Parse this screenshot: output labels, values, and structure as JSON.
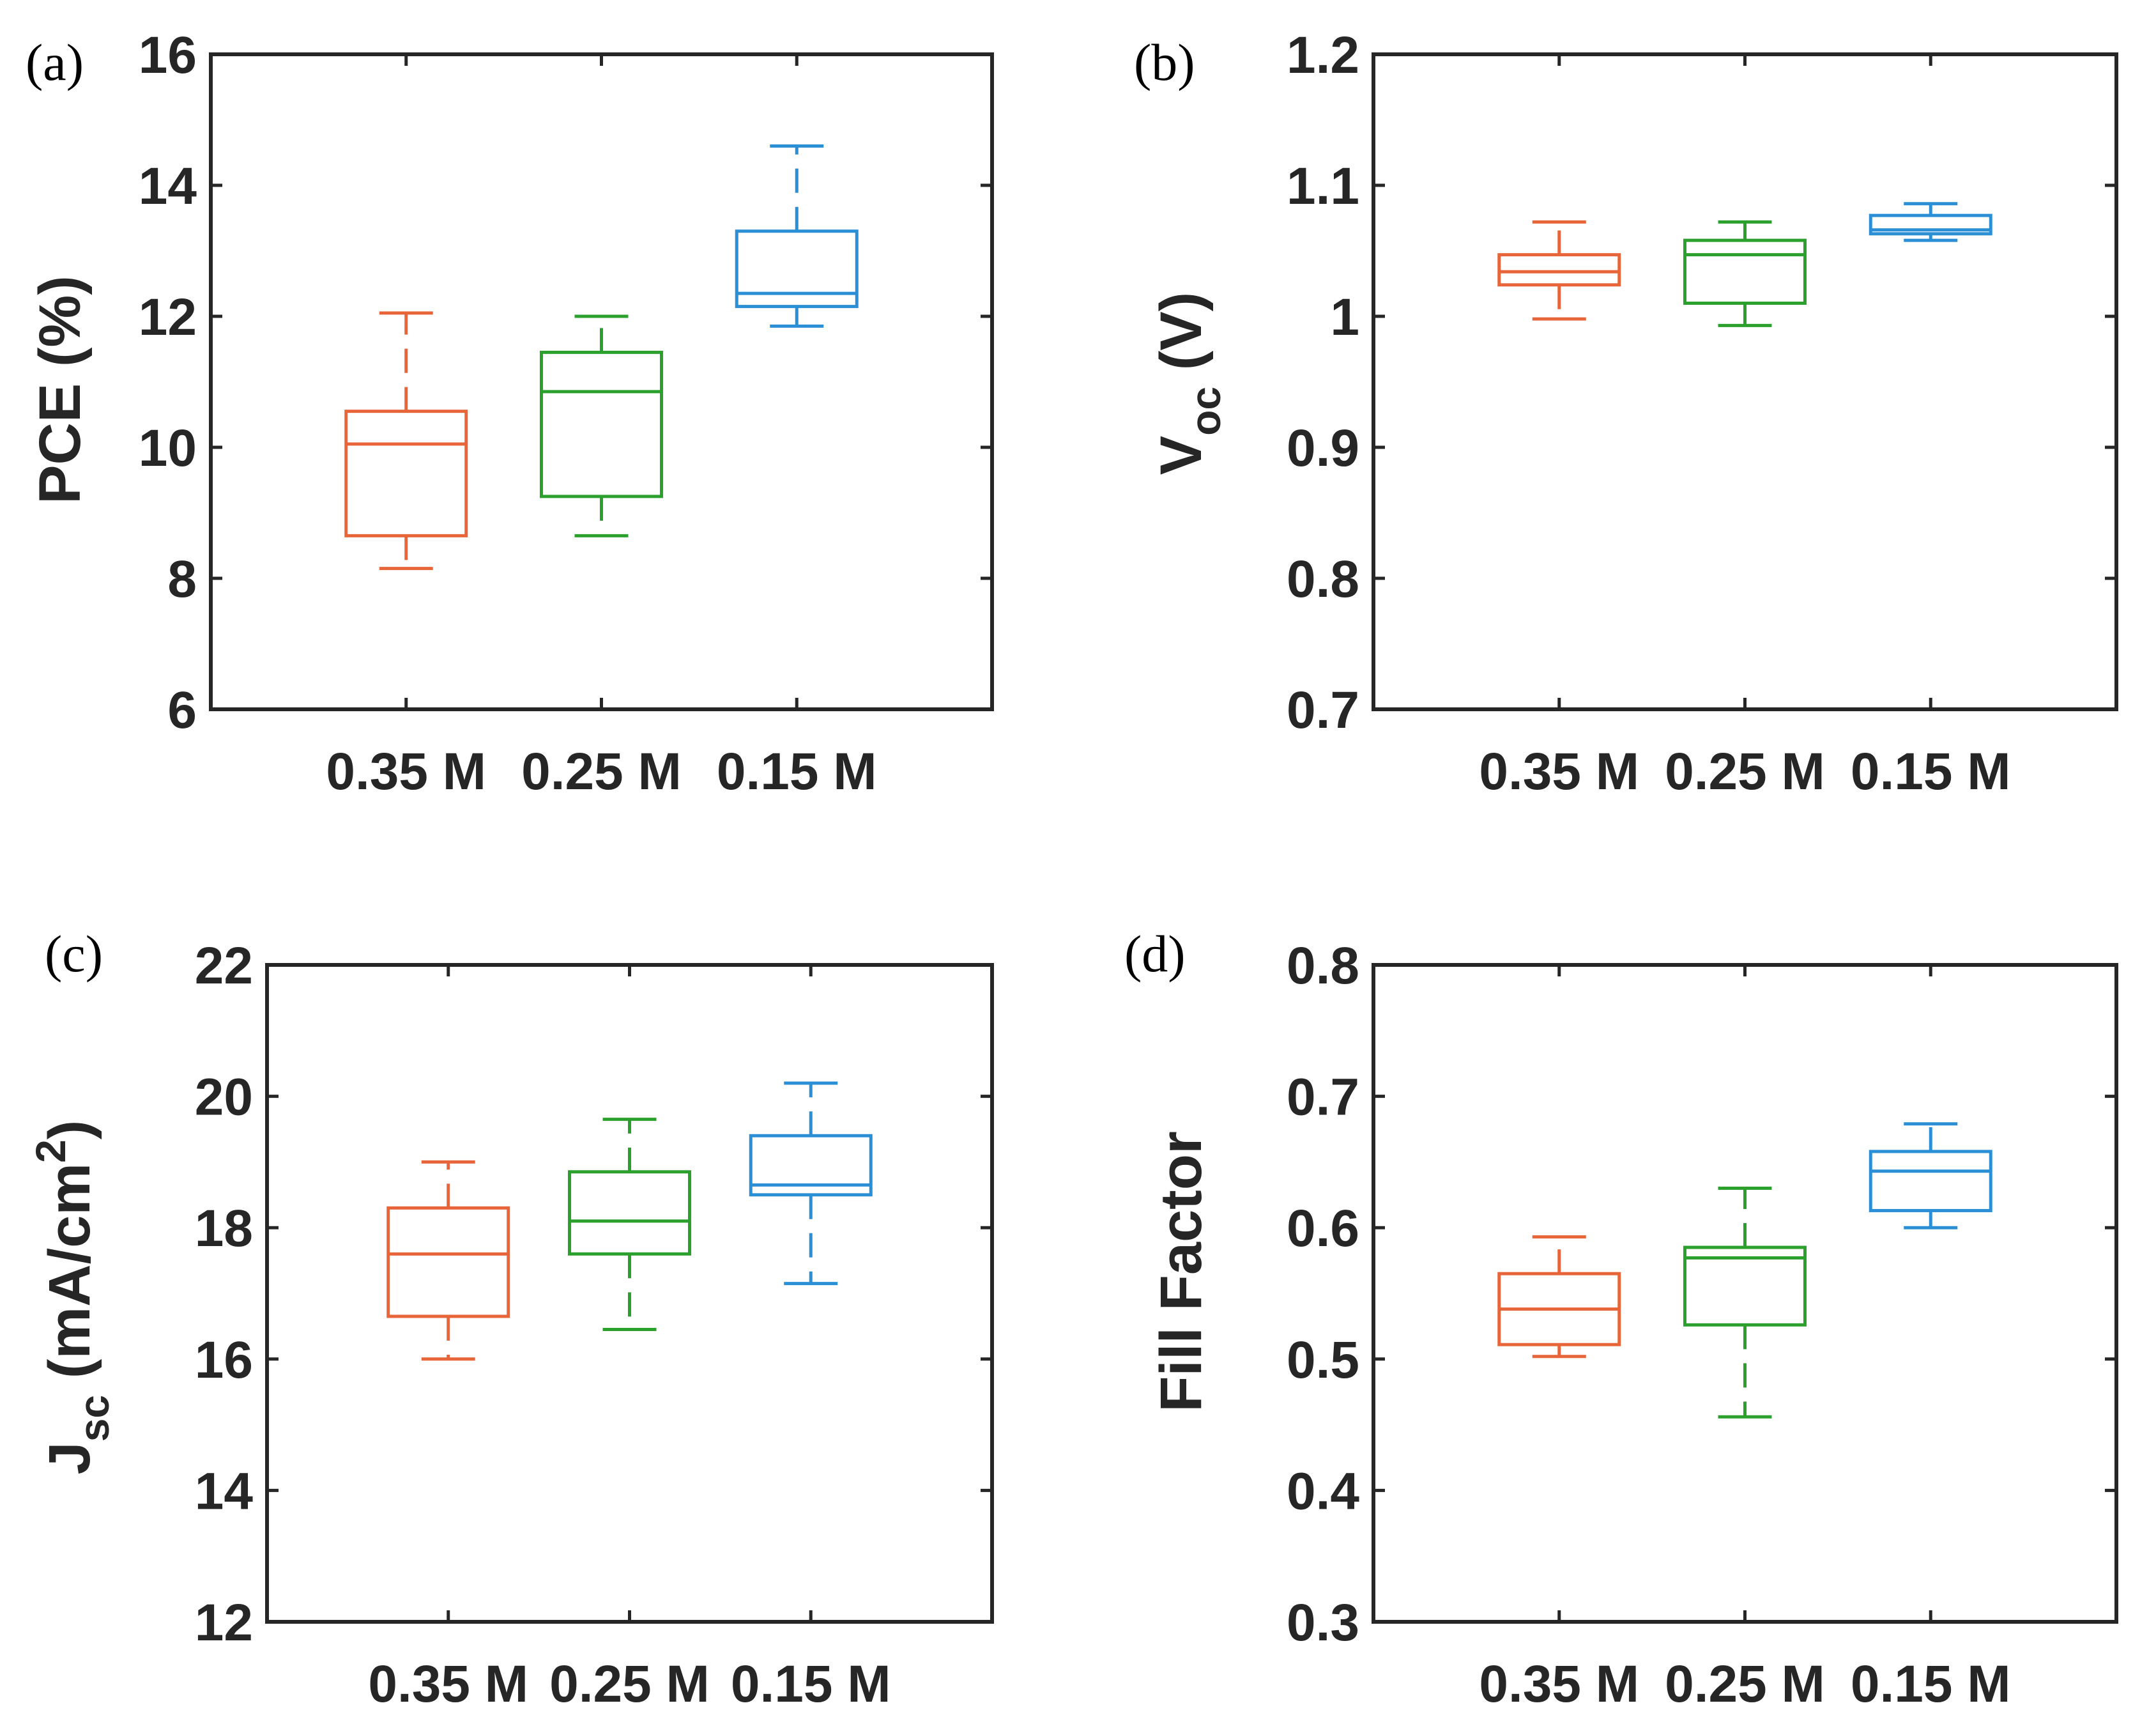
{
  "colors": {
    "0.35 M": "#e8653a",
    "0.25 M": "#2ca02c",
    "0.15 M": "#2b8fd6",
    "axis": "#262626"
  },
  "chart_data": [
    {
      "type": "box",
      "panel_label": "(a)",
      "ylabel": "PCE (%)",
      "ylabel_main": "PCE (%)",
      "ylabel_sub": "",
      "ylabel_tail": "",
      "ylabel_sup": "",
      "ylabel_tail2": "",
      "ylim": [
        6,
        16
      ],
      "yticks": [
        6,
        8,
        10,
        12,
        14,
        16
      ],
      "ytick_labels": [
        "6",
        "8",
        "10",
        "12",
        "14",
        "16"
      ],
      "categories": [
        "0.35 M",
        "0.25 M",
        "0.15 M"
      ],
      "boxes": [
        {
          "category": "0.35 M",
          "min": 8.15,
          "q1": 8.65,
          "median": 10.05,
          "q3": 10.55,
          "max": 12.05
        },
        {
          "category": "0.25 M",
          "min": 8.65,
          "q1": 9.25,
          "median": 10.85,
          "q3": 11.45,
          "max": 12.0
        },
        {
          "category": "0.15 M",
          "min": 11.85,
          "q1": 12.15,
          "median": 12.35,
          "q3": 13.3,
          "max": 14.6
        }
      ]
    },
    {
      "type": "box",
      "panel_label": "(b)",
      "ylabel": "Voc (V)",
      "ylabel_main": "V",
      "ylabel_sub": "oc",
      "ylabel_tail": " (V)",
      "ylabel_sup": "",
      "ylabel_tail2": "",
      "ylim": [
        0.7,
        1.2
      ],
      "yticks": [
        0.7,
        0.8,
        0.9,
        1.0,
        1.1,
        1.2
      ],
      "ytick_labels": [
        "0.7",
        "0.8",
        "0.9",
        "1",
        "1.1",
        "1.2"
      ],
      "categories": [
        "0.35 M",
        "0.25 M",
        "0.15 M"
      ],
      "boxes": [
        {
          "category": "0.35 M",
          "min": 0.998,
          "q1": 1.024,
          "median": 1.034,
          "q3": 1.047,
          "max": 1.072
        },
        {
          "category": "0.25 M",
          "min": 0.993,
          "q1": 1.01,
          "median": 1.047,
          "q3": 1.058,
          "max": 1.072
        },
        {
          "category": "0.15 M",
          "min": 1.058,
          "q1": 1.063,
          "median": 1.066,
          "q3": 1.077,
          "max": 1.086
        }
      ]
    },
    {
      "type": "box",
      "panel_label": "(c)",
      "ylabel": "Jsc (mA/cm2)",
      "ylabel_main": "J",
      "ylabel_sub": "sc",
      "ylabel_tail": " (mA/cm",
      "ylabel_sup": "2",
      "ylabel_tail2": ")",
      "ylim": [
        12,
        22
      ],
      "yticks": [
        12,
        14,
        16,
        18,
        20,
        22
      ],
      "ytick_labels": [
        "12",
        "14",
        "16",
        "18",
        "20",
        "22"
      ],
      "categories": [
        "0.35 M",
        "0.25 M",
        "0.15 M"
      ],
      "boxes": [
        {
          "category": "0.35 M",
          "min": 16.0,
          "q1": 16.65,
          "median": 17.6,
          "q3": 18.3,
          "max": 19.0
        },
        {
          "category": "0.25 M",
          "min": 16.45,
          "q1": 17.6,
          "median": 18.1,
          "q3": 18.85,
          "max": 19.65
        },
        {
          "category": "0.15 M",
          "min": 17.15,
          "q1": 18.5,
          "median": 18.65,
          "q3": 19.4,
          "max": 20.2
        }
      ]
    },
    {
      "type": "box",
      "panel_label": "(d)",
      "ylabel": "Fill Factor",
      "ylabel_main": "Fill Factor",
      "ylabel_sub": "",
      "ylabel_tail": "",
      "ylabel_sup": "",
      "ylabel_tail2": "",
      "ylim": [
        0.3,
        0.8
      ],
      "yticks": [
        0.3,
        0.4,
        0.5,
        0.6,
        0.7,
        0.8
      ],
      "ytick_labels": [
        "0.3",
        "0.4",
        "0.5",
        "0.6",
        "0.7",
        "0.8"
      ],
      "categories": [
        "0.35 M",
        "0.25 M",
        "0.15 M"
      ],
      "boxes": [
        {
          "category": "0.35 M",
          "min": 0.502,
          "q1": 0.511,
          "median": 0.538,
          "q3": 0.565,
          "max": 0.593
        },
        {
          "category": "0.25 M",
          "min": 0.456,
          "q1": 0.526,
          "median": 0.577,
          "q3": 0.585,
          "max": 0.63
        },
        {
          "category": "0.15 M",
          "min": 0.6,
          "q1": 0.613,
          "median": 0.643,
          "q3": 0.658,
          "max": 0.679
        }
      ]
    }
  ]
}
